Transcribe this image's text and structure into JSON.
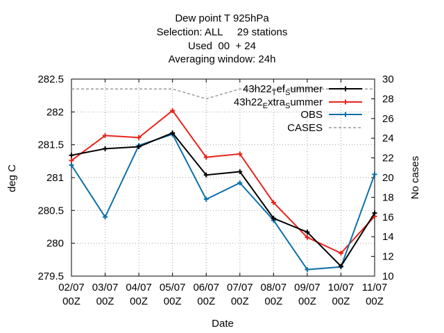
{
  "chart_data": {
    "type": "line",
    "title_lines": [
      "Dew point T 925hPa",
      "Selection: ALL     29 stations",
      "Used  00  + 24",
      "Averaging window: 24h"
    ],
    "xlabel": "Date",
    "ylabel": "deg C",
    "y2label": "No cases",
    "categories": [
      "02/07\n00Z",
      "03/07\n00Z",
      "04/07\n00Z",
      "05/07\n00Z",
      "06/07\n00Z",
      "07/07\n00Z",
      "08/07\n00Z",
      "09/07\n00Z",
      "10/07\n00Z",
      "11/07\n00Z"
    ],
    "ylim": [
      279.5,
      282.5
    ],
    "yticks": [
      "279.5",
      "280",
      "280.5",
      "281",
      "281.5",
      "282",
      "282.5"
    ],
    "y2lim": [
      10,
      30
    ],
    "y2ticks": [
      "10",
      "12",
      "14",
      "16",
      "18",
      "20",
      "22",
      "24",
      "26",
      "28",
      "30"
    ],
    "grid": true,
    "legend_position": "top-right",
    "series": [
      {
        "name": "43h22_Tef_Summer",
        "legend_main": "43h22",
        "legend_sub1": "T",
        "legend_mid": "ef",
        "legend_sub2": "S",
        "legend_tail": "ummer",
        "axis": "y",
        "color": "#000000",
        "marker": "cross",
        "values": [
          281.34,
          281.44,
          281.47,
          281.68,
          281.04,
          281.09,
          280.38,
          280.17,
          279.65,
          280.46
        ]
      },
      {
        "name": "43h22_Extra_Summer",
        "legend_main": "43h22",
        "legend_sub1": "E",
        "legend_mid": "xtra",
        "legend_sub2": "S",
        "legend_tail": "ummer",
        "axis": "y",
        "color": "#e8231c",
        "marker": "cross",
        "values": [
          281.26,
          281.64,
          281.61,
          282.02,
          281.31,
          281.36,
          280.62,
          280.09,
          279.85,
          280.41
        ]
      },
      {
        "name": "OBS",
        "legend_main": "OBS",
        "axis": "y",
        "color": "#0e6fa8",
        "marker": "cross",
        "values": [
          281.19,
          280.4,
          281.49,
          281.66,
          280.67,
          280.92,
          280.35,
          279.6,
          279.64,
          281.05
        ]
      },
      {
        "name": "CASES",
        "legend_main": "CASES",
        "axis": "y2",
        "color": "#999999",
        "dashed": true,
        "values": [
          29,
          29,
          29,
          29,
          28,
          29,
          29,
          29,
          29,
          29
        ]
      }
    ]
  }
}
